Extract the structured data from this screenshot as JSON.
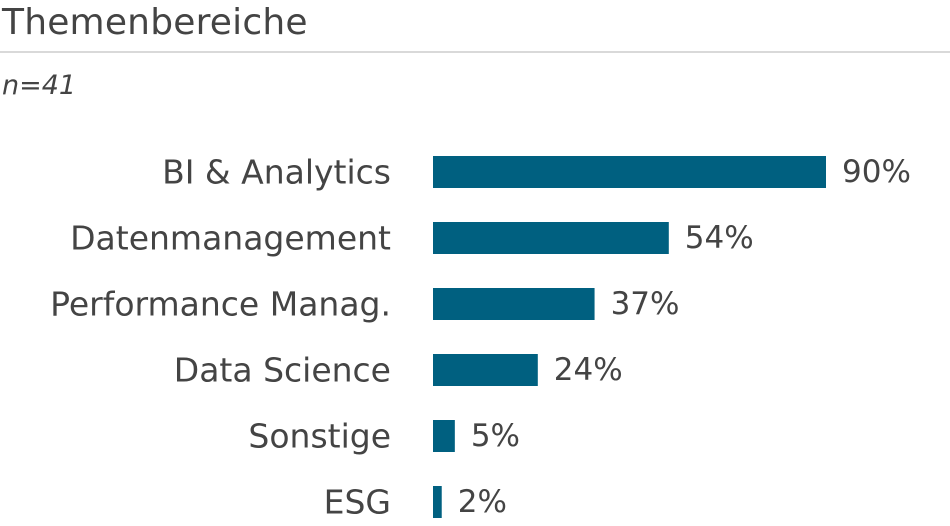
{
  "chart_data": {
    "type": "bar",
    "orientation": "horizontal",
    "title": "Themenbereiche",
    "subtitle": "n=41",
    "categories": [
      "BI & Analytics",
      "Datenmanagement",
      "Performance Manag.",
      "Data Science",
      "Sonstige",
      "ESG"
    ],
    "values": [
      90,
      54,
      37,
      24,
      5,
      2
    ],
    "value_labels": [
      "90%",
      "54%",
      "37%",
      "24%",
      "5%",
      "2%"
    ],
    "unit": "%",
    "xlim": [
      0,
      100
    ],
    "grid": false,
    "legend": "none",
    "bar_color": "#006080"
  }
}
